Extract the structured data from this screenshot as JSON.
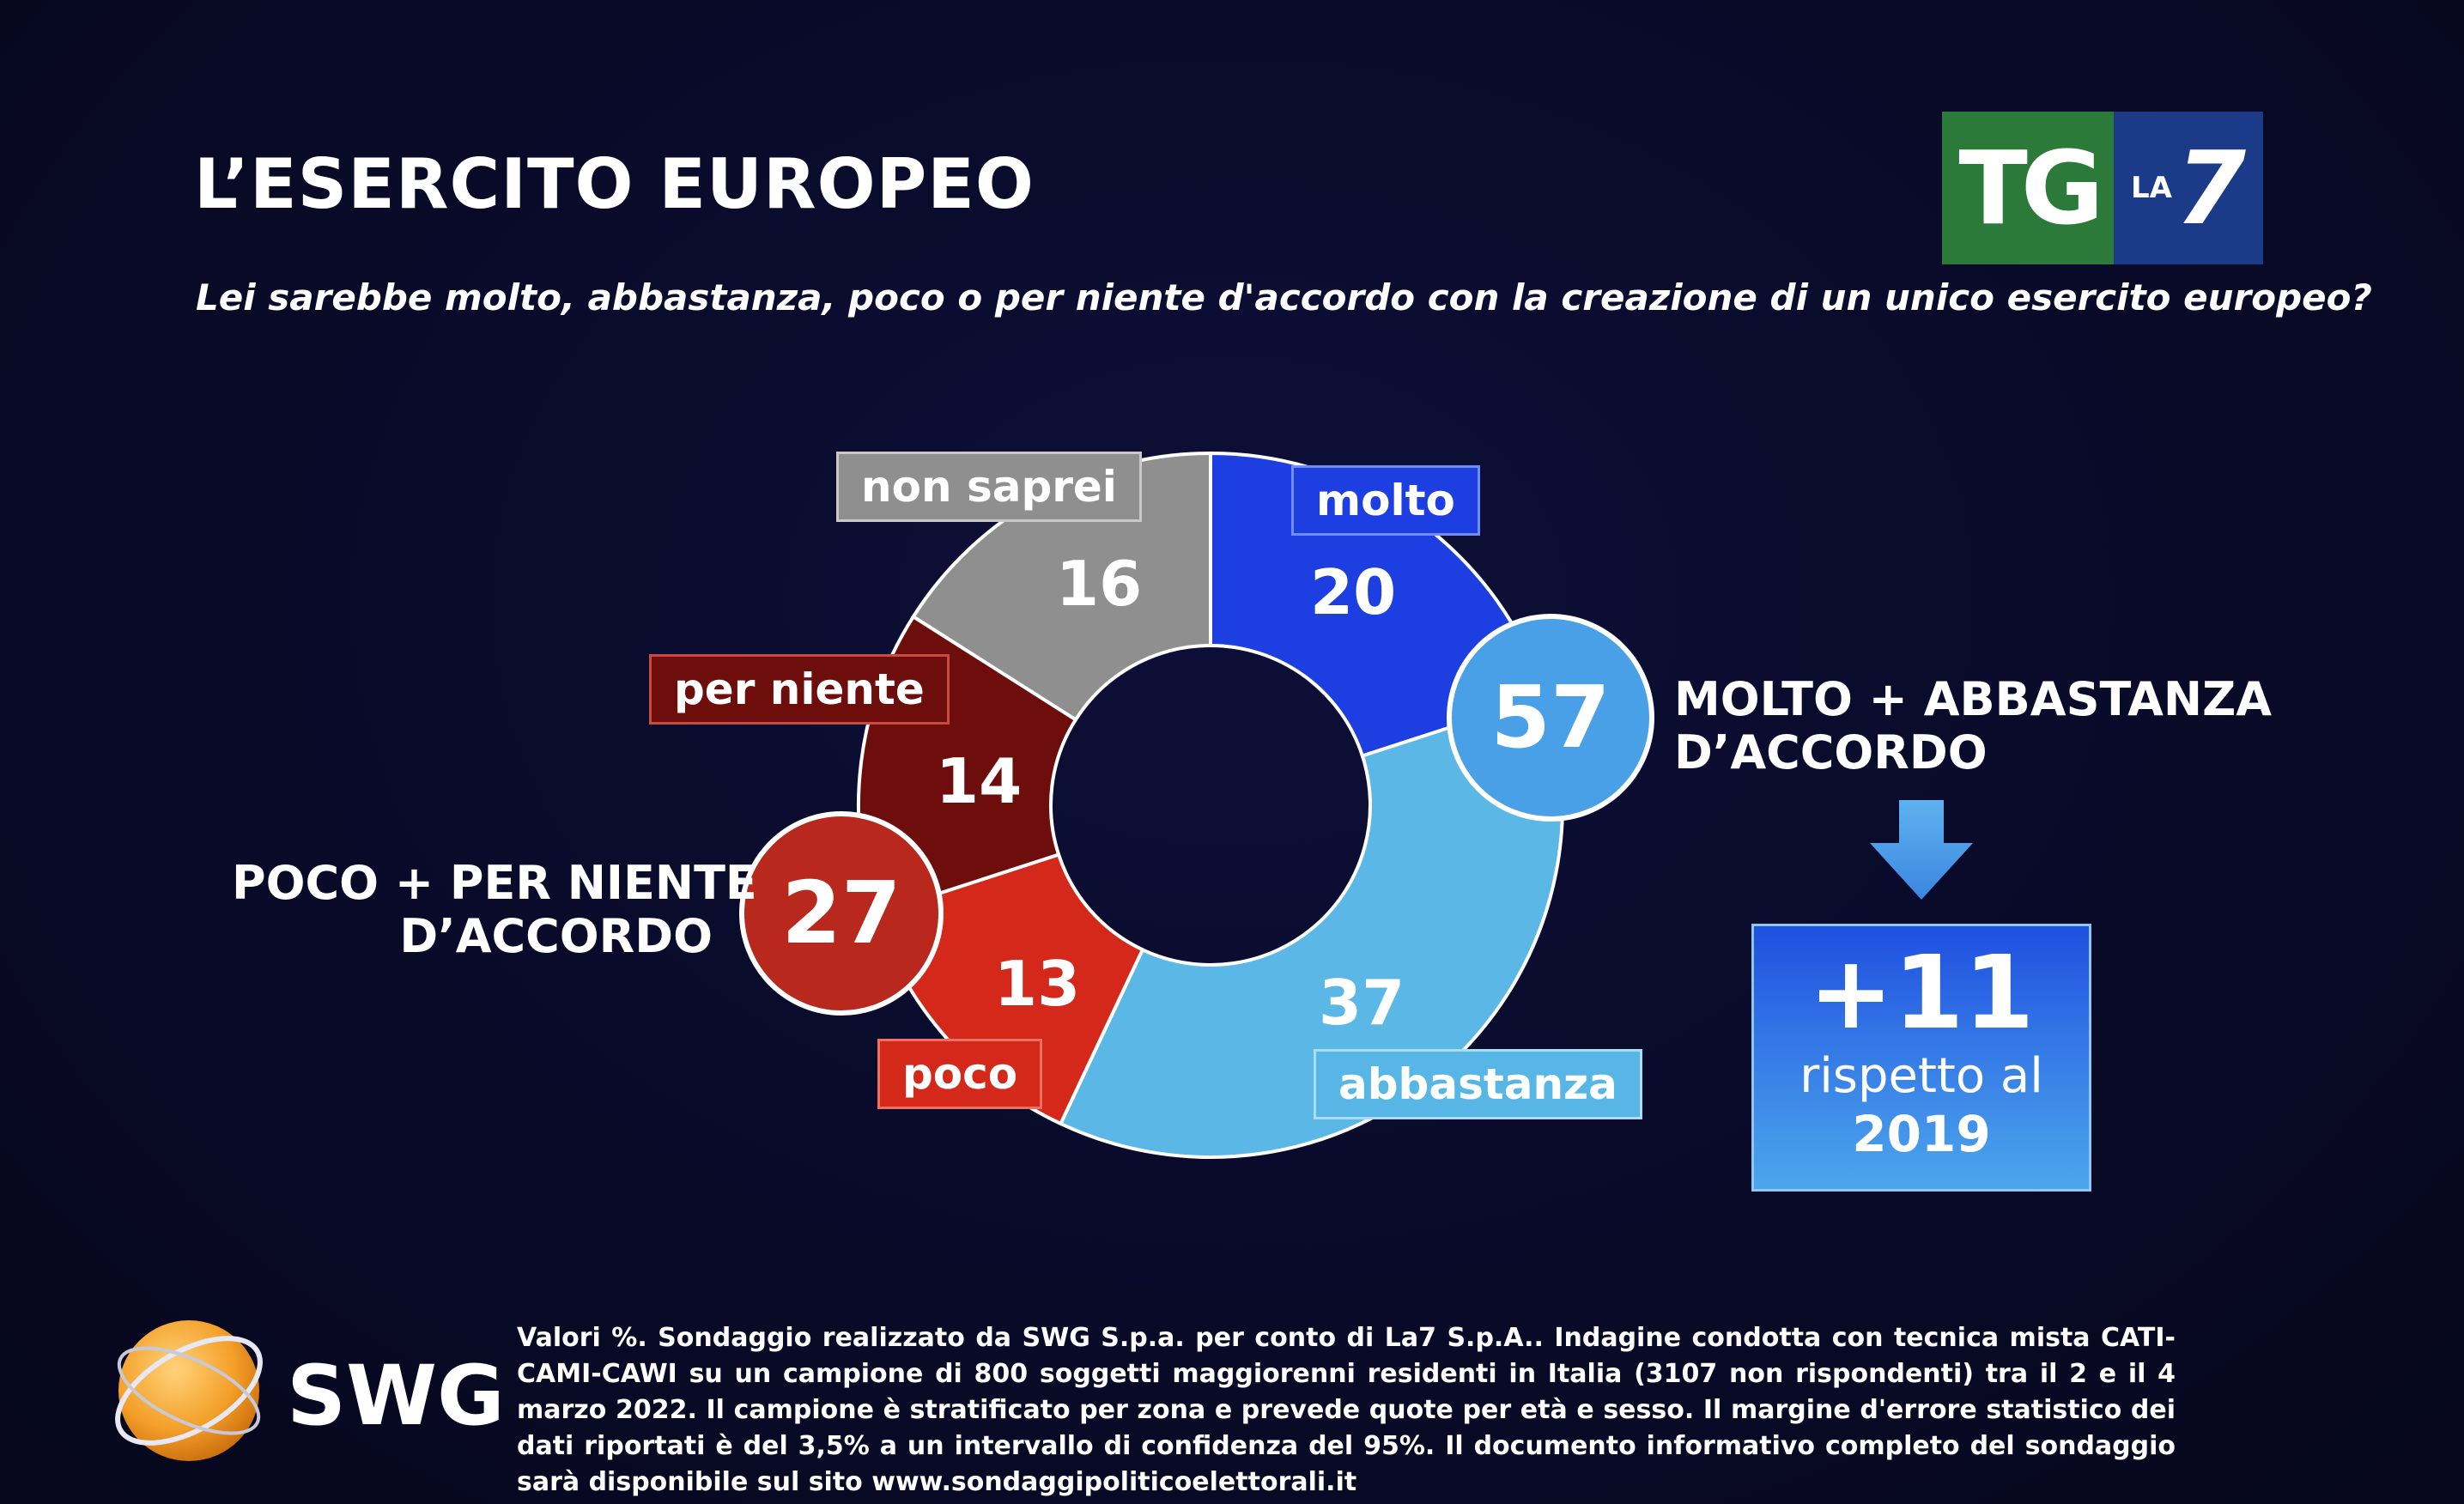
{
  "title": "L’ESERCITO EUROPEO",
  "subtitle": "Lei sarebbe molto, abbastanza, poco o per niente d'accordo con la creazione di un unico esercito europeo?",
  "logo": {
    "tg": "TG",
    "la": "LA",
    "seven": "7"
  },
  "chart_data": {
    "type": "pie",
    "categories": [
      "molto",
      "abbastanza",
      "poco",
      "per niente",
      "non saprei"
    ],
    "values": [
      20,
      37,
      13,
      14,
      16
    ],
    "colors": [
      "#1d3ee0",
      "#5ab7e6",
      "#d4281a",
      "#6e0e0c",
      "#8f8f8f"
    ],
    "aggregates": [
      {
        "label_line1": "MOLTO + ABBASTANZA",
        "label_line2": "D’ACCORDO",
        "value": 57,
        "color": "#4aa0e6"
      },
      {
        "label_line1": "POCO + PER NIENTE",
        "label_line2": "D’ACCORDO",
        "value": 27,
        "color": "#b8281c"
      }
    ]
  },
  "labels": {
    "molto": "molto",
    "abbastanza": "abbastanza",
    "poco": "poco",
    "per_niente": "per niente",
    "non_saprei": "non saprei"
  },
  "values_text": {
    "molto": "20",
    "abbastanza": "37",
    "poco": "13",
    "per_niente": "14",
    "non_saprei": "16",
    "agg_yes": "57",
    "agg_no": "27"
  },
  "aggregate_text": {
    "yes_line1": "MOLTO + ABBASTANZA",
    "yes_line2": "D’ACCORDO",
    "no_line1": "POCO + PER NIENTE",
    "no_line2": "D’ACCORDO"
  },
  "change": {
    "value": "+11",
    "line1": "rispetto al",
    "line2": "2019"
  },
  "source_logo": "SWG",
  "footnote": "Valori %. Sondaggio realizzato da SWG S.p.a. per conto di La7 S.p.A.. Indagine condotta con tecnica mista CATI-CAMI-CAWI su un campione di 800 soggetti maggiorenni residenti in Italia (3107 non rispondenti) tra il 2 e il 4 marzo 2022. Il campione è stratificato per zona e prevede quote per età e sesso. Il margine d'errore statistico dei dati riportati è del 3,5% a un intervallo di confidenza del 95%. Il documento informativo completo del sondaggio sarà disponibile sul sito www.sondaggipoliticoelettorali.it"
}
